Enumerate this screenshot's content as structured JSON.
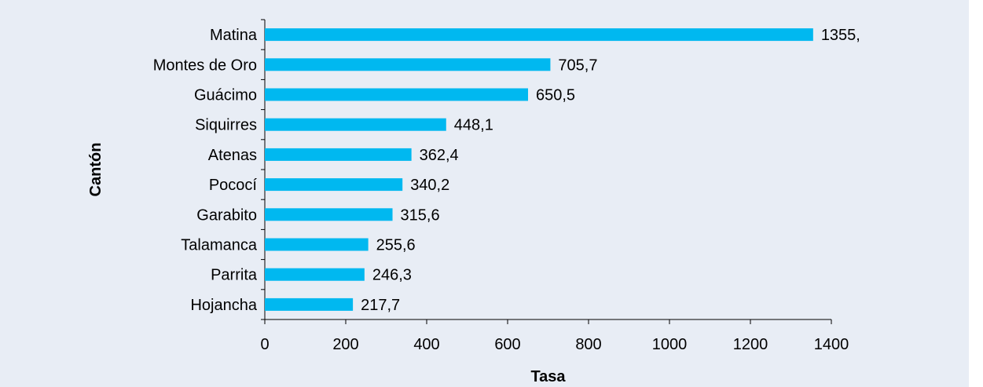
{
  "chart_data": {
    "type": "bar",
    "orientation": "horizontal",
    "title": "",
    "xlabel": "Tasa",
    "ylabel": "Cantón",
    "categories": [
      "Matina",
      "Montes de Oro",
      "Guácimo",
      "Siquirres",
      "Atenas",
      "Pococí",
      "Garabito",
      "Talamanca",
      "Parrita",
      "Hojancha"
    ],
    "values": [
      1355,
      705.7,
      650.5,
      448.1,
      362.4,
      340.2,
      315.6,
      255.6,
      246.3,
      217.7
    ],
    "value_labels": [
      "1355,",
      "705,7",
      "650,5",
      "448,1",
      "362,4",
      "340,2",
      "315,6",
      "255,6",
      "246,3",
      "217,7"
    ],
    "xlim": [
      0,
      1400
    ],
    "xticks": [
      0,
      200,
      400,
      600,
      800,
      1000,
      1200,
      1400
    ],
    "grid": false,
    "bar_color": "#00b8f0",
    "background_color": "#e8edf5"
  }
}
